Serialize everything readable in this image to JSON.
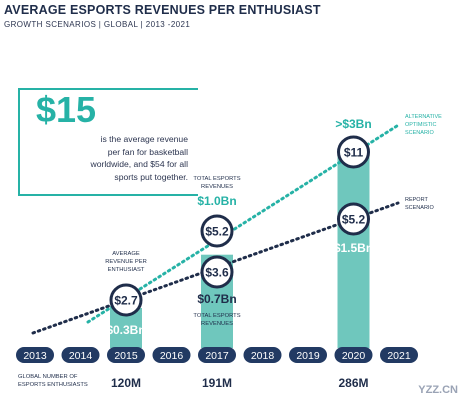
{
  "header": {
    "title": "AVERAGE ESPORTS REVENUES PER ENTHUSIAST",
    "subtitle": "GROWTH SCENARIOS | GLOBAL | 2013 -2021"
  },
  "callout": {
    "big": "$15",
    "text_lines": [
      "is the average revenue",
      "per fan for basketball",
      "worldwide, and $54 for all",
      "sports put together."
    ]
  },
  "chart_data": {
    "type": "bar",
    "categories": [
      "2013",
      "2014",
      "2015",
      "2016",
      "2017",
      "2018",
      "2019",
      "2020",
      "2021"
    ],
    "series": [
      {
        "name": "TOTAL ESPORTS REVENUES",
        "values": [
          null,
          null,
          0.3,
          null,
          0.7,
          null,
          null,
          1.5,
          null
        ],
        "unit": "Bn"
      }
    ],
    "labels": {
      "total_revenue": {
        "2015": "$0.3Bn",
        "2017": "$0.7Bn",
        "2020": "$1.5Bn"
      },
      "alt_total_revenue": {
        "2017": "$1.0Bn",
        "2020": ">$3Bn"
      },
      "report_per_enthusiast": {
        "2015": "$2.7",
        "2017": "$3.6",
        "2020": "$5.2"
      },
      "alt_per_enthusiast": {
        "2017": "$5.2",
        "2020": "$11"
      }
    },
    "enthusiasts": {
      "label_lines": [
        "GLOBAL NUMBER OF",
        "ESPORTS ENTHUSIASTS"
      ],
      "values": {
        "2015": "120M",
        "2017": "191M",
        "2020": "286M"
      }
    },
    "annotations": {
      "avg_revenue_lines": [
        "AVERAGE",
        "REVENUE PER",
        "ENTHUSIAST"
      ],
      "total_rev_top_lines": [
        "TOTAL ESPORTS",
        "REVENUES"
      ],
      "total_rev_bottom_lines": [
        "TOTAL ESPORTS",
        "REVENUES"
      ],
      "alt_scenario_lines": [
        "ALTERNATIVE",
        "OPTIMISTIC",
        "SCENARIO"
      ],
      "report_scenario_lines": [
        "REPORT",
        "SCENARIO"
      ]
    },
    "colors": {
      "bar": "#6fc7bd",
      "accent": "#26b2a6",
      "navy": "#1f2d4a",
      "year_pill": "#223a63"
    },
    "grid": false,
    "watermark": "YZZ.CN"
  }
}
